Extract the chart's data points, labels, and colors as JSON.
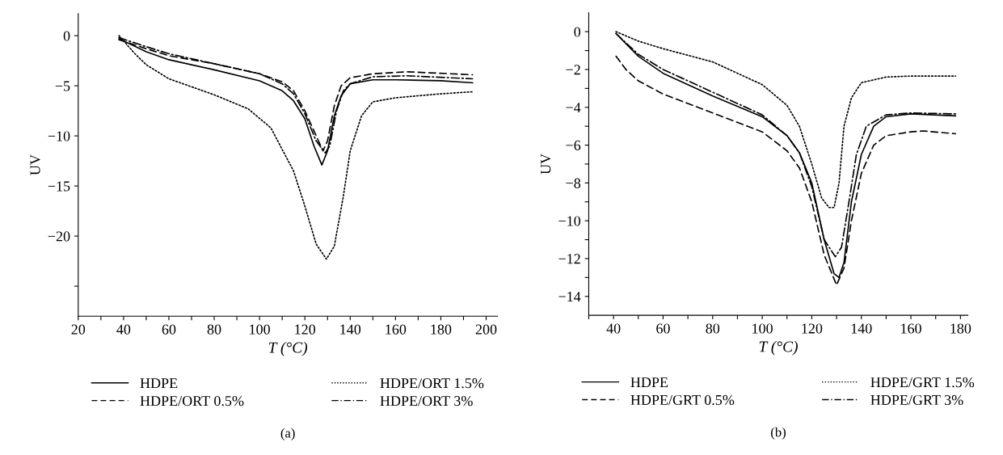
{
  "chart_data": [
    {
      "type": "line",
      "xlabel": "T (°C)",
      "ylabel": "UV",
      "xlim": [
        20,
        205
      ],
      "ylim": [
        -28,
        2.2
      ],
      "xticks": [
        20,
        {
          "value": 30,
          "label": null
        },
        40,
        {
          "value": 50,
          "label": null
        },
        60,
        {
          "value": 70,
          "label": null
        },
        80,
        {
          "value": 90,
          "label": null
        },
        100,
        {
          "value": 110,
          "label": null
        },
        120,
        {
          "value": 130,
          "label": null
        },
        140,
        {
          "value": 150,
          "label": null
        },
        160,
        {
          "value": 170,
          "label": null
        },
        180,
        {
          "value": 190,
          "label": null
        },
        200
      ],
      "yticks": [
        {
          "value": -25,
          "label": null
        },
        -20,
        -15,
        -10,
        -5,
        0
      ],
      "grid": false,
      "legend": "bottom",
      "annotations": [
        "(a)"
      ],
      "series": [
        {
          "name": "HDPE",
          "color": "#000000",
          "line_style": "solid",
          "x": [
            38,
            50,
            60,
            80,
            100,
            110,
            115,
            120,
            124,
            127.5,
            130,
            133,
            136,
            140,
            150,
            160,
            180,
            194
          ],
          "values": [
            -0.3,
            -1.6,
            -2.4,
            -3.4,
            -4.5,
            -5.5,
            -6.5,
            -8.3,
            -11,
            -12.9,
            -11.5,
            -8,
            -6,
            -4.8,
            -4.4,
            -4.4,
            -4.5,
            -4.7
          ]
        },
        {
          "name": "HDPE/ORT 0.5%",
          "color": "#000000",
          "line_style": "dashed",
          "x": [
            38,
            50,
            60,
            80,
            100,
            110,
            115,
            120,
            125,
            128,
            130,
            133,
            136,
            140,
            150,
            165,
            194
          ],
          "values": [
            -0.4,
            -1.3,
            -2,
            -2.8,
            -3.8,
            -4.6,
            -5.5,
            -7.5,
            -10,
            -11.5,
            -10.5,
            -7,
            -5,
            -4.2,
            -3.8,
            -3.6,
            -3.9
          ]
        },
        {
          "name": "HDPE/ORT 1.5%",
          "color": "#000000",
          "line_style": "dotted",
          "x": [
            38,
            45,
            50,
            60,
            80,
            95,
            105,
            115,
            120,
            125,
            129.5,
            133,
            137,
            140,
            145,
            150,
            160,
            180,
            194
          ],
          "values": [
            0,
            -1.8,
            -2.9,
            -4.3,
            -5.9,
            -7.3,
            -9.2,
            -13.5,
            -17,
            -20.8,
            -22.3,
            -21,
            -16,
            -11.5,
            -8,
            -6.6,
            -6.2,
            -5.8,
            -5.6
          ]
        },
        {
          "name": "HDPE/ORT 3%",
          "color": "#000000",
          "line_style": "dashdot",
          "x": [
            38,
            50,
            60,
            80,
            100,
            110,
            115,
            120,
            125,
            129,
            131,
            134,
            137,
            140,
            150,
            165,
            194
          ],
          "values": [
            -0.2,
            -1.1,
            -1.8,
            -2.8,
            -3.8,
            -4.8,
            -5.8,
            -7.8,
            -10.5,
            -11.7,
            -11,
            -7.5,
            -5.5,
            -4.8,
            -4.1,
            -4.0,
            -4.3
          ]
        }
      ]
    },
    {
      "type": "line",
      "xlabel": "T (°C)",
      "ylabel": "UV",
      "xlim": [
        30,
        183
      ],
      "ylim": [
        -15,
        1
      ],
      "xticks": [
        {
          "value": 30,
          "label": null
        },
        40,
        {
          "value": 50,
          "label": null
        },
        60,
        {
          "value": 70,
          "label": null
        },
        80,
        {
          "value": 90,
          "label": null
        },
        100,
        {
          "value": 110,
          "label": null
        },
        120,
        {
          "value": 130,
          "label": null
        },
        140,
        {
          "value": 150,
          "label": null
        },
        160,
        {
          "value": 170,
          "label": null
        },
        180
      ],
      "yticks": [
        -14,
        {
          "value": -13,
          "label": null
        },
        -12,
        {
          "value": -11,
          "label": null
        },
        -10,
        {
          "value": -9,
          "label": null
        },
        -8,
        {
          "value": -7,
          "label": null
        },
        -6,
        {
          "value": -5,
          "label": null
        },
        -4,
        {
          "value": -3,
          "label": null
        },
        -2,
        {
          "value": -1,
          "label": null
        },
        0
      ],
      "grid": false,
      "legend": "bottom",
      "annotations": [
        "(b)"
      ],
      "series": [
        {
          "name": "HDPE",
          "color": "#000000",
          "line_style": "solid",
          "x": [
            41,
            50,
            60,
            80,
            100,
            110,
            115,
            120,
            125,
            129,
            131,
            133,
            136,
            140,
            145,
            150,
            160,
            178
          ],
          "values": [
            -0.1,
            -1.3,
            -2.2,
            -3.4,
            -4.5,
            -5.5,
            -6.4,
            -8,
            -11,
            -12.8,
            -13,
            -12.2,
            -9,
            -6.5,
            -5,
            -4.5,
            -4.35,
            -4.45
          ]
        },
        {
          "name": "HDPE/GRT 0.5%",
          "color": "#000000",
          "line_style": "dashed",
          "x": [
            41,
            45,
            50,
            60,
            80,
            100,
            110,
            115,
            120,
            125,
            130,
            133,
            136,
            140,
            145,
            150,
            160,
            165,
            178
          ],
          "values": [
            -1.3,
            -2.0,
            -2.6,
            -3.3,
            -4.3,
            -5.3,
            -6.3,
            -7.2,
            -9,
            -11.8,
            -13.4,
            -12.5,
            -10,
            -7.5,
            -6,
            -5.5,
            -5.3,
            -5.25,
            -5.4
          ]
        },
        {
          "name": "HDPE/GRT 1.5%",
          "color": "#000000",
          "line_style": "dotted",
          "x": [
            41,
            50,
            60,
            80,
            100,
            110,
            115,
            120,
            124,
            127,
            129,
            131,
            133,
            136,
            140,
            150,
            160,
            178
          ],
          "values": [
            0,
            -0.5,
            -0.9,
            -1.6,
            -2.8,
            -3.9,
            -5,
            -7,
            -8.8,
            -9.3,
            -9.3,
            -8,
            -5,
            -3.5,
            -2.7,
            -2.4,
            -2.35,
            -2.35
          ]
        },
        {
          "name": "HDPE/GRT 3%",
          "color": "#000000",
          "line_style": "dashdot",
          "x": [
            41,
            50,
            60,
            80,
            100,
            110,
            115,
            120,
            125,
            129.5,
            132,
            135,
            138,
            142,
            150,
            160,
            178
          ],
          "values": [
            -0.1,
            -1.2,
            -2.0,
            -3.2,
            -4.4,
            -5.5,
            -6.4,
            -8.2,
            -11,
            -11.9,
            -11.4,
            -9,
            -6.5,
            -5,
            -4.4,
            -4.3,
            -4.35
          ]
        }
      ]
    }
  ]
}
